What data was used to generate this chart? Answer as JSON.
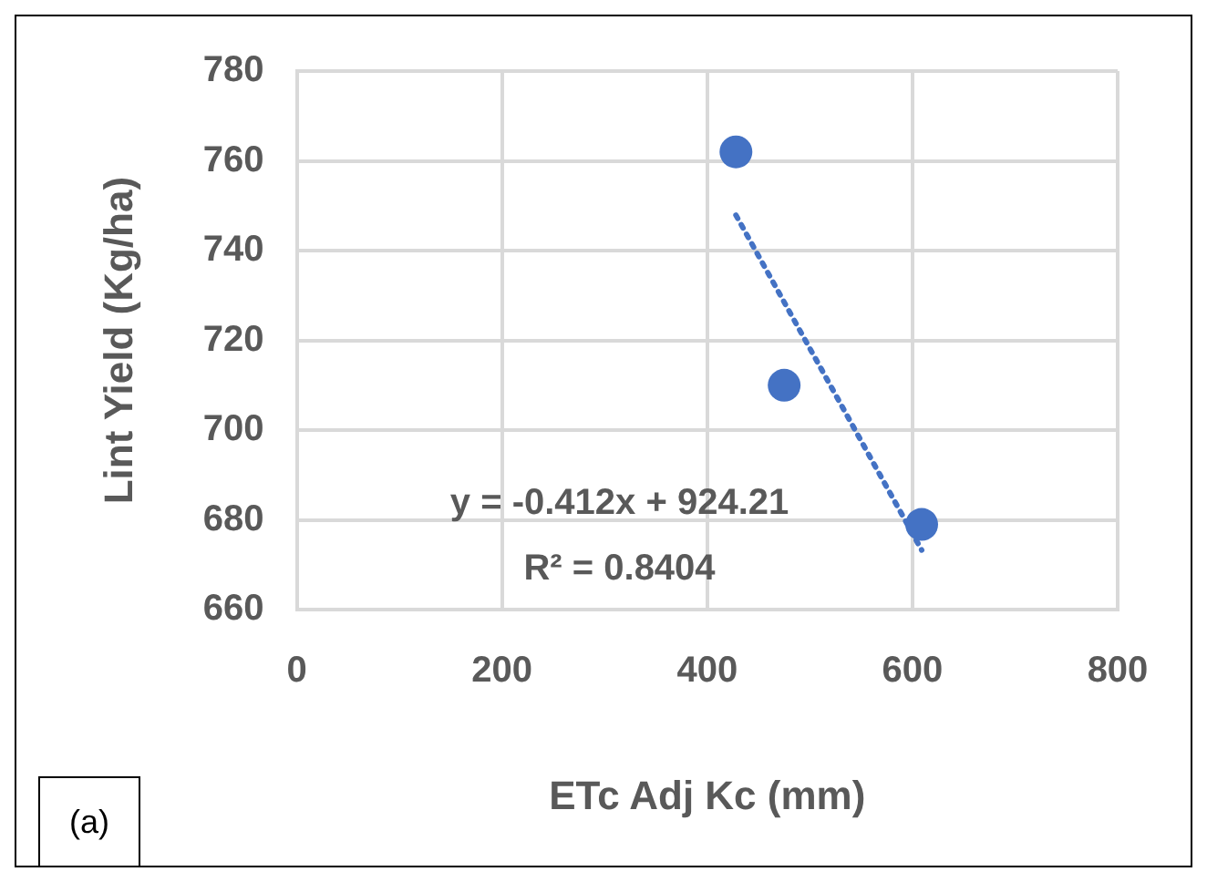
{
  "chart_data": {
    "type": "scatter",
    "xlabel": "ETc Adj Kc (mm)",
    "ylabel": "Lint Yield (Kg/ha)",
    "xlim": [
      0,
      800
    ],
    "xticks": [
      0,
      200,
      400,
      600,
      800
    ],
    "ylim": [
      660,
      780
    ],
    "yticks": [
      660,
      680,
      700,
      720,
      740,
      760,
      780
    ],
    "grid": true,
    "series": [
      {
        "color": "#4472c4",
        "marker": "circle",
        "x": [
          428,
          475,
          609
        ],
        "values": [
          762,
          710,
          679
        ]
      },
      {
        "type": "line",
        "color": "#4472c4",
        "marker": "none",
        "line_style": "dotted",
        "x": [
          428,
          609
        ],
        "values": [
          747.9,
          673.3
        ]
      }
    ],
    "annotations": [
      "y = -0.412x + 924.21",
      "R² = 0.8404",
      "(a)"
    ]
  }
}
